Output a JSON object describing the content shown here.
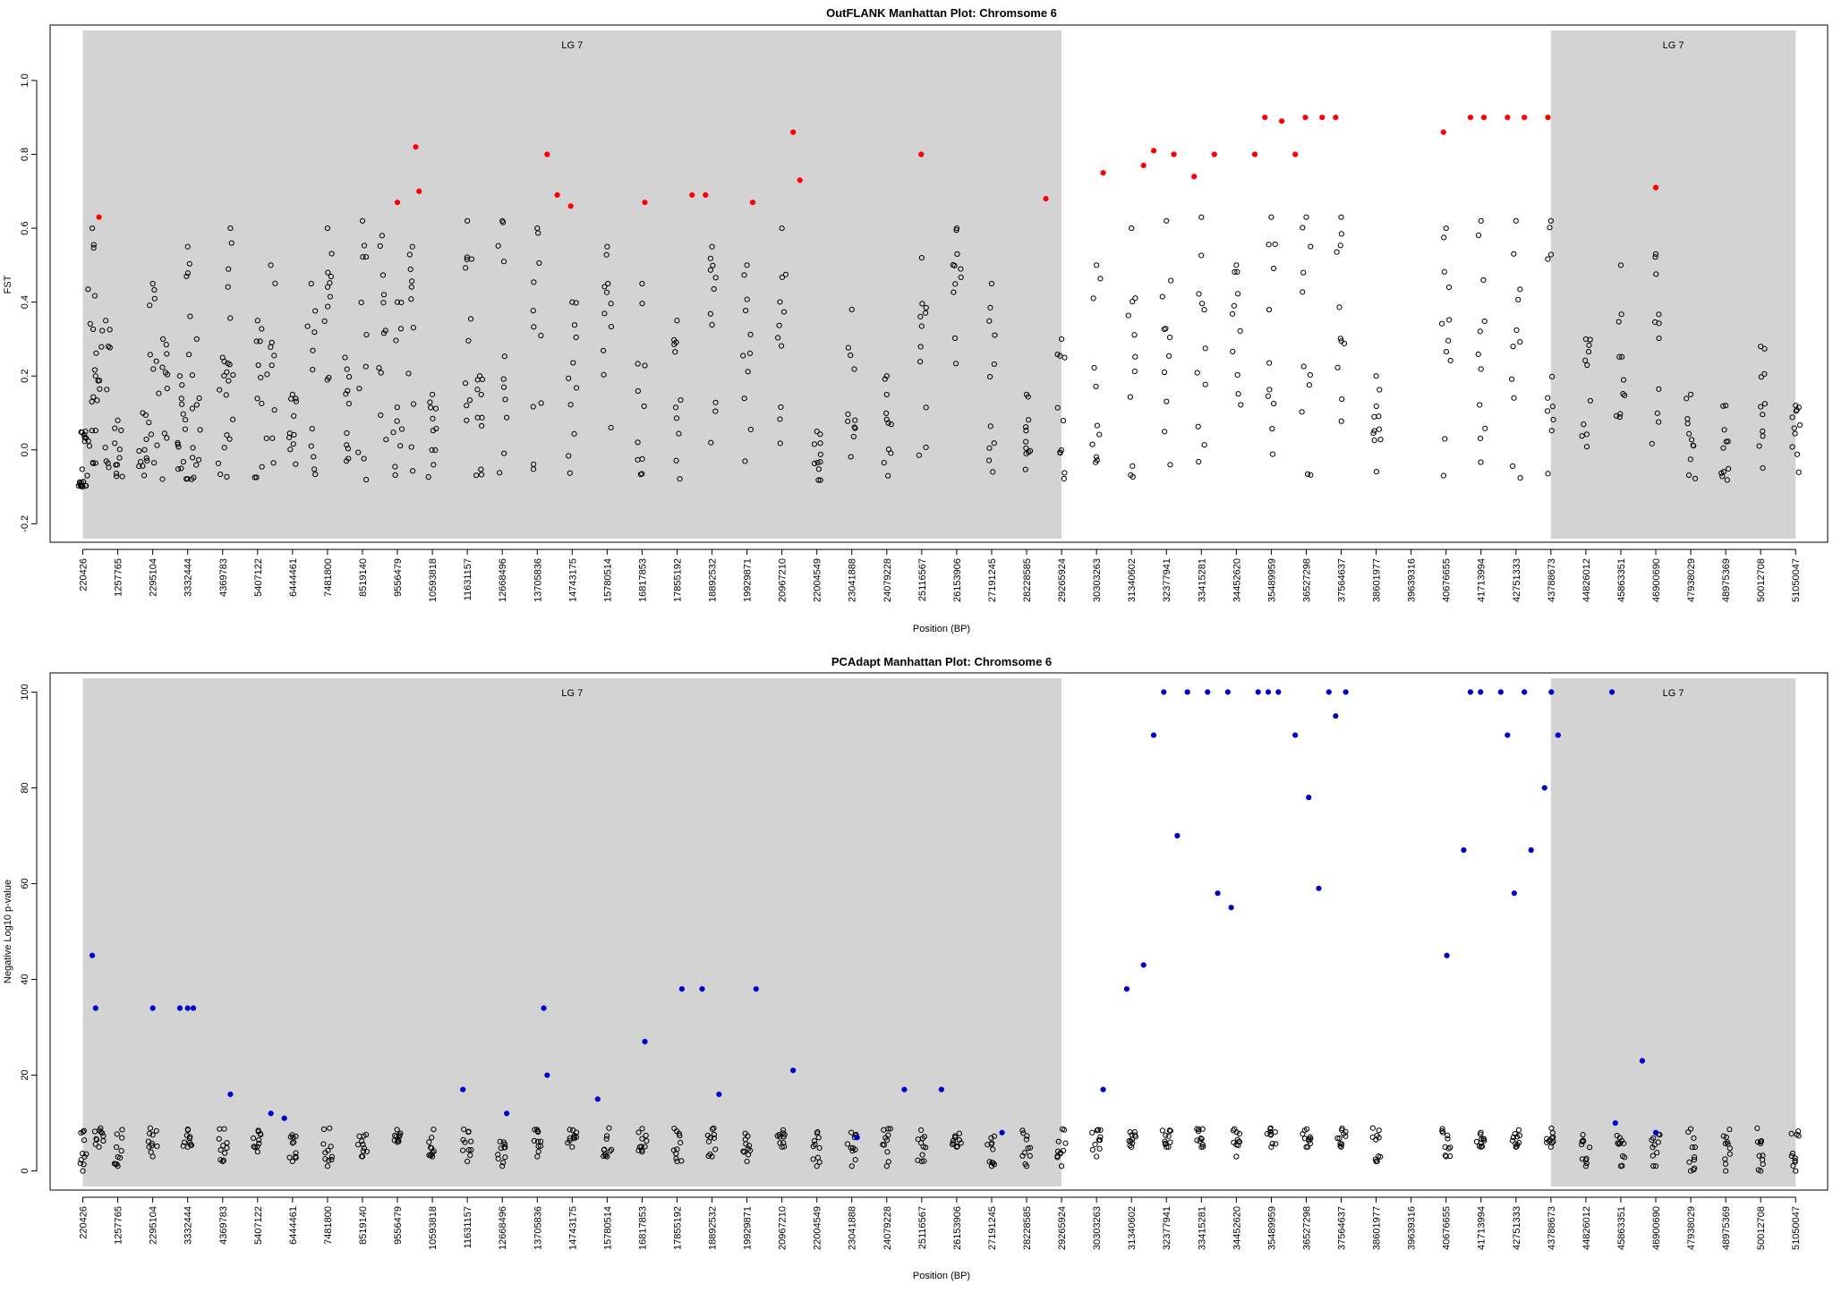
{
  "chart_data": [
    {
      "type": "scatter",
      "title": "OutFLANK Manhattan Plot: Chromsome 6",
      "xlabel": "Position (BP)",
      "ylabel": "FST",
      "xlim": [
        -750000,
        52000000
      ],
      "ylim": [
        -0.25,
        1.15
      ],
      "y_ticks": [
        "-0.2",
        "0.0",
        "0.2",
        "0.4",
        "0.6",
        "0.8",
        "1.0"
      ],
      "y_tick_values": [
        -0.2,
        0.0,
        0.2,
        0.4,
        0.6,
        0.8,
        1.0
      ],
      "x_ticks": [
        "220426",
        "1257765",
        "2295104",
        "3332444",
        "4369783",
        "5407122",
        "6444461",
        "7481800",
        "8519140",
        "9556479",
        "10593818",
        "11631157",
        "12668496",
        "13705836",
        "14743175",
        "15780514",
        "16817853",
        "17855192",
        "18892532",
        "19929871",
        "20967210",
        "22004549",
        "23041888",
        "24079228",
        "25116567",
        "26153906",
        "27191245",
        "28228585",
        "29265924",
        "30303263",
        "31340602",
        "32377941",
        "33415281",
        "34452620",
        "35489959",
        "36527298",
        "37564637",
        "38601977",
        "39639316",
        "40676655",
        "41713994",
        "42751333",
        "43788673",
        "44826012",
        "45863351",
        "46900690",
        "47938029",
        "48975369",
        "50012708",
        "51050047"
      ],
      "shaded_regions": [
        {
          "label": "LG 7",
          "x_start": 220426,
          "x_end": 29265924,
          "color": "#d3d3d3"
        },
        {
          "label": "LG 7",
          "x_start": 43788673,
          "x_end": 51050047,
          "color": "#d3d3d3"
        }
      ],
      "series": [
        {
          "name": "",
          "color": "#000000",
          "marker": "open-circle",
          "points": [
            [
              220426,
              -0.1
            ],
            [
              300000,
              0.05
            ],
            [
              500000,
              0.6
            ],
            [
              600000,
              0.2
            ],
            [
              900000,
              0.35
            ],
            [
              1257765,
              0.08
            ],
            [
              2000000,
              0.1
            ],
            [
              2295104,
              0.45
            ],
            [
              2600000,
              0.3
            ],
            [
              3100000,
              0.2
            ],
            [
              3332444,
              0.55
            ],
            [
              3600000,
              0.3
            ],
            [
              4369783,
              0.25
            ],
            [
              4600000,
              0.6
            ],
            [
              5407122,
              0.35
            ],
            [
              5800000,
              0.5
            ],
            [
              6444461,
              0.15
            ],
            [
              7000000,
              0.45
            ],
            [
              7481800,
              0.6
            ],
            [
              8000000,
              0.25
            ],
            [
              8519140,
              0.62
            ],
            [
              9100000,
              0.58
            ],
            [
              9556479,
              0.4
            ],
            [
              10000000,
              0.55
            ],
            [
              10593818,
              0.15
            ],
            [
              11631157,
              0.62
            ],
            [
              12000000,
              0.2
            ],
            [
              12668496,
              0.62
            ],
            [
              13705836,
              0.6
            ],
            [
              14743175,
              0.4
            ],
            [
              15780514,
              0.55
            ],
            [
              16817853,
              0.45
            ],
            [
              17855192,
              0.35
            ],
            [
              18892532,
              0.55
            ],
            [
              19929871,
              0.5
            ],
            [
              20967210,
              0.6
            ],
            [
              22004549,
              0.05
            ],
            [
              23041888,
              0.38
            ],
            [
              24079228,
              0.2
            ],
            [
              25116567,
              0.52
            ],
            [
              26153906,
              0.6
            ],
            [
              27191245,
              0.45
            ],
            [
              28228585,
              0.15
            ],
            [
              29265924,
              0.3
            ],
            [
              30303263,
              0.5
            ],
            [
              31340602,
              0.6
            ],
            [
              32377941,
              0.62
            ],
            [
              33415281,
              0.63
            ],
            [
              34452620,
              0.5
            ],
            [
              35489959,
              0.63
            ],
            [
              36527298,
              0.63
            ],
            [
              37564637,
              0.63
            ],
            [
              38601977,
              0.2
            ],
            [
              40676655,
              0.6
            ],
            [
              41713994,
              0.62
            ],
            [
              42751333,
              0.62
            ],
            [
              43788673,
              0.62
            ],
            [
              44826012,
              0.3
            ],
            [
              45863351,
              0.5
            ],
            [
              46900690,
              0.53
            ],
            [
              47938029,
              0.15
            ],
            [
              48975369,
              0.12
            ],
            [
              50012708,
              0.28
            ],
            [
              51050047,
              0.12
            ]
          ]
        },
        {
          "name": "",
          "color": "#ff0000",
          "marker": "filled-circle",
          "points": [
            [
              700000,
              0.63
            ],
            [
              9556479,
              0.67
            ],
            [
              10100000,
              0.82
            ],
            [
              10200000,
              0.7
            ],
            [
              14000000,
              0.8
            ],
            [
              14300000,
              0.69
            ],
            [
              14700000,
              0.66
            ],
            [
              16900000,
              0.67
            ],
            [
              18300000,
              0.69
            ],
            [
              18700000,
              0.69
            ],
            [
              20100000,
              0.67
            ],
            [
              21300000,
              0.86
            ],
            [
              21500000,
              0.73
            ],
            [
              25100000,
              0.8
            ],
            [
              28800000,
              0.68
            ],
            [
              30500000,
              0.75
            ],
            [
              31700000,
              0.77
            ],
            [
              32000000,
              0.81
            ],
            [
              32600000,
              0.8
            ],
            [
              33200000,
              0.74
            ],
            [
              33800000,
              0.8
            ],
            [
              35000000,
              0.8
            ],
            [
              35300000,
              0.9
            ],
            [
              35800000,
              0.89
            ],
            [
              36200000,
              0.8
            ],
            [
              36500000,
              0.9
            ],
            [
              37000000,
              0.9
            ],
            [
              37400000,
              0.9
            ],
            [
              40600000,
              0.86
            ],
            [
              41400000,
              0.9
            ],
            [
              41800000,
              0.9
            ],
            [
              42500000,
              0.9
            ],
            [
              43000000,
              0.9
            ],
            [
              43700000,
              0.9
            ],
            [
              46900000,
              0.71
            ]
          ]
        }
      ]
    },
    {
      "type": "scatter",
      "title": "PCAdapt Manhattan Plot: Chromsome 6",
      "xlabel": "Position (BP)",
      "ylabel": "Negative Log10 p-value",
      "xlim": [
        -750000,
        52000000
      ],
      "ylim": [
        -4,
        104
      ],
      "y_ticks": [
        "0",
        "20",
        "40",
        "60",
        "80",
        "100"
      ],
      "y_tick_values": [
        0,
        20,
        40,
        60,
        80,
        100
      ],
      "x_ticks": [
        "220426",
        "1257765",
        "2295104",
        "3332444",
        "4369783",
        "5407122",
        "6444461",
        "7481800",
        "8519140",
        "9556479",
        "10593818",
        "11631157",
        "12668496",
        "13705836",
        "14743175",
        "15780514",
        "16817853",
        "17855192",
        "18892532",
        "19929871",
        "20967210",
        "22004549",
        "23041888",
        "24079228",
        "25116567",
        "26153906",
        "27191245",
        "28228585",
        "29265924",
        "30303263",
        "31340602",
        "32377941",
        "33415281",
        "34452620",
        "35489959",
        "36527298",
        "37564637",
        "38601977",
        "39639316",
        "40676655",
        "41713994",
        "42751333",
        "43788673",
        "44826012",
        "45863351",
        "46900690",
        "47938029",
        "48975369",
        "50012708",
        "51050047"
      ],
      "shaded_regions": [
        {
          "label": "LG 7",
          "x_start": 220426,
          "x_end": 29265924,
          "color": "#d3d3d3"
        },
        {
          "label": "LG 7",
          "x_start": 43788673,
          "x_end": 51050047,
          "color": "#d3d3d3"
        }
      ],
      "series": [
        {
          "name": "",
          "color": "#000000",
          "marker": "open-circle",
          "points": [
            [
              220426,
              0
            ],
            [
              700000,
              5
            ],
            [
              1257765,
              1
            ],
            [
              2295104,
              3
            ],
            [
              3332444,
              5
            ],
            [
              4369783,
              2
            ],
            [
              5407122,
              4
            ],
            [
              6444461,
              2
            ],
            [
              7481800,
              1
            ],
            [
              8519140,
              3
            ],
            [
              9556479,
              6
            ],
            [
              10593818,
              3
            ],
            [
              11631157,
              2
            ],
            [
              12668496,
              1
            ],
            [
              13705836,
              3
            ],
            [
              14743175,
              5
            ],
            [
              15780514,
              3
            ],
            [
              16817853,
              4
            ],
            [
              17855192,
              2
            ],
            [
              18892532,
              3
            ],
            [
              19929871,
              2
            ],
            [
              20967210,
              5
            ],
            [
              22004549,
              1
            ],
            [
              23041888,
              1
            ],
            [
              24079228,
              1
            ],
            [
              25116567,
              2
            ],
            [
              26153906,
              5
            ],
            [
              27191245,
              1
            ],
            [
              28228585,
              1
            ],
            [
              29265924,
              1
            ],
            [
              30303263,
              3
            ],
            [
              31340602,
              5
            ],
            [
              32377941,
              5
            ],
            [
              33415281,
              5
            ],
            [
              34452620,
              3
            ],
            [
              35489959,
              5
            ],
            [
              36527298,
              5
            ],
            [
              37564637,
              5
            ],
            [
              38601977,
              2
            ],
            [
              40676655,
              3
            ],
            [
              41713994,
              5
            ],
            [
              42751333,
              5
            ],
            [
              43788673,
              5
            ],
            [
              44826012,
              1
            ],
            [
              45863351,
              1
            ],
            [
              46900690,
              1
            ],
            [
              47938029,
              0
            ],
            [
              48975369,
              0
            ],
            [
              50012708,
              0
            ],
            [
              51050047,
              0
            ]
          ]
        },
        {
          "name": "",
          "color": "#0000cc",
          "marker": "filled-circle",
          "points": [
            [
              500000,
              45
            ],
            [
              600000,
              34
            ],
            [
              2295104,
              34
            ],
            [
              3100000,
              34
            ],
            [
              3332444,
              34
            ],
            [
              3500000,
              34
            ],
            [
              4600000,
              16
            ],
            [
              5800000,
              12
            ],
            [
              6200000,
              11
            ],
            [
              11500000,
              17
            ],
            [
              12800000,
              12
            ],
            [
              13900000,
              34
            ],
            [
              14000000,
              20
            ],
            [
              15500000,
              15
            ],
            [
              16900000,
              27
            ],
            [
              18000000,
              38
            ],
            [
              18600000,
              38
            ],
            [
              19100000,
              16
            ],
            [
              20200000,
              38
            ],
            [
              21300000,
              21
            ],
            [
              23200000,
              7
            ],
            [
              24600000,
              17
            ],
            [
              25700000,
              17
            ],
            [
              27500000,
              8
            ],
            [
              30500000,
              17
            ],
            [
              31200000,
              38
            ],
            [
              31700000,
              43
            ],
            [
              32000000,
              91
            ],
            [
              32300000,
              100
            ],
            [
              32700000,
              70
            ],
            [
              33000000,
              100
            ],
            [
              33600000,
              100
            ],
            [
              33900000,
              58
            ],
            [
              34200000,
              100
            ],
            [
              34300000,
              55
            ],
            [
              35100000,
              100
            ],
            [
              35400000,
              100
            ],
            [
              35700000,
              100
            ],
            [
              36200000,
              91
            ],
            [
              36600000,
              78
            ],
            [
              36900000,
              59
            ],
            [
              37200000,
              100
            ],
            [
              37400000,
              95
            ],
            [
              37700000,
              100
            ],
            [
              40700000,
              45
            ],
            [
              41200000,
              67
            ],
            [
              41400000,
              100
            ],
            [
              41700000,
              100
            ],
            [
              42300000,
              100
            ],
            [
              42500000,
              91
            ],
            [
              42700000,
              58
            ],
            [
              43000000,
              100
            ],
            [
              43200000,
              67
            ],
            [
              43600000,
              80
            ],
            [
              43800000,
              100
            ],
            [
              44000000,
              91
            ],
            [
              45600000,
              100
            ],
            [
              45700000,
              10
            ],
            [
              46500000,
              23
            ],
            [
              46900000,
              8
            ]
          ]
        }
      ]
    }
  ]
}
